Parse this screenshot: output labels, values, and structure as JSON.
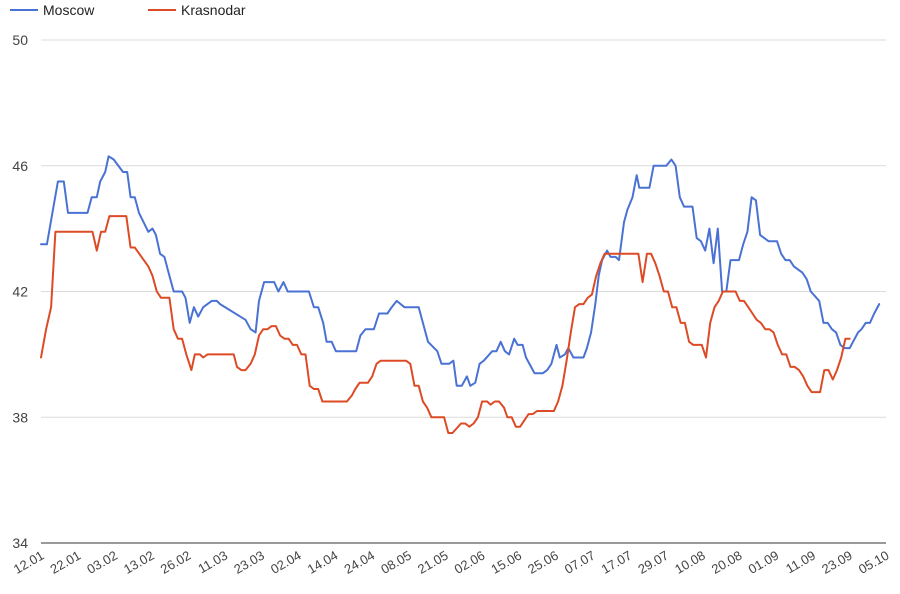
{
  "chart_data": {
    "type": "line",
    "legend_position": "top-left",
    "grid": true,
    "ylim": [
      34,
      50
    ],
    "yticks": [
      34,
      38,
      42,
      46,
      50
    ],
    "x_tick_labels": [
      "12.01",
      "22.01",
      "03.02",
      "13.02",
      "26.02",
      "11.03",
      "23.03",
      "02.04",
      "14.04",
      "24.04",
      "08.05",
      "21.05",
      "02.06",
      "15.06",
      "25.06",
      "07.07",
      "17.07",
      "29.07",
      "10.08",
      "20.08",
      "01.09",
      "11.09",
      "23.09",
      "05.10"
    ],
    "series": [
      {
        "name": "Moscow",
        "color": "#4a72d4",
        "points": [
          [
            0,
            43.5
          ],
          [
            0.7,
            43.5
          ],
          [
            2,
            45.5
          ],
          [
            2.7,
            45.5
          ],
          [
            3.2,
            44.5
          ],
          [
            5.5,
            44.5
          ],
          [
            6,
            45
          ],
          [
            6.6,
            45
          ],
          [
            7,
            45.5
          ],
          [
            7.6,
            45.8
          ],
          [
            8,
            46.3
          ],
          [
            8.6,
            46.2
          ],
          [
            9.7,
            45.8
          ],
          [
            10.2,
            45.8
          ],
          [
            10.6,
            45
          ],
          [
            11.1,
            45
          ],
          [
            11.6,
            44.5
          ],
          [
            12.7,
            43.9
          ],
          [
            13.2,
            44
          ],
          [
            13.6,
            43.8
          ],
          [
            14.1,
            43.2
          ],
          [
            14.6,
            43.1
          ],
          [
            15.2,
            42.5
          ],
          [
            15.7,
            42
          ],
          [
            16.7,
            42
          ],
          [
            17.1,
            41.8
          ],
          [
            17.6,
            41
          ],
          [
            18.1,
            41.5
          ],
          [
            18.6,
            41.2
          ],
          [
            19.2,
            41.5
          ],
          [
            20.2,
            41.7
          ],
          [
            20.8,
            41.7
          ],
          [
            21.2,
            41.6
          ],
          [
            24.2,
            41.1
          ],
          [
            24.8,
            40.8
          ],
          [
            25.4,
            40.7
          ],
          [
            25.8,
            41.7
          ],
          [
            26.4,
            42.3
          ],
          [
            27.6,
            42.3
          ],
          [
            28.1,
            42
          ],
          [
            28.7,
            42.3
          ],
          [
            29.2,
            42
          ],
          [
            31.7,
            42
          ],
          [
            32.3,
            41.5
          ],
          [
            32.8,
            41.5
          ],
          [
            33.4,
            41
          ],
          [
            33.8,
            40.4
          ],
          [
            34.4,
            40.4
          ],
          [
            34.9,
            40.1
          ],
          [
            37.3,
            40.1
          ],
          [
            37.8,
            40.6
          ],
          [
            38.4,
            40.8
          ],
          [
            39.4,
            40.8
          ],
          [
            40,
            41.3
          ],
          [
            41,
            41.3
          ],
          [
            41.5,
            41.5
          ],
          [
            42.1,
            41.7
          ],
          [
            43,
            41.5
          ],
          [
            44.7,
            41.5
          ],
          [
            45.3,
            40.9
          ],
          [
            45.8,
            40.4
          ],
          [
            46.9,
            40.1
          ],
          [
            47.4,
            39.7
          ],
          [
            48.3,
            39.7
          ],
          [
            48.8,
            39.8
          ],
          [
            49.2,
            39
          ],
          [
            49.8,
            39
          ],
          [
            50.4,
            39.3
          ],
          [
            50.8,
            39
          ],
          [
            51.4,
            39.1
          ],
          [
            51.9,
            39.7
          ],
          [
            52.4,
            39.8
          ],
          [
            53.4,
            40.1
          ],
          [
            53.9,
            40.1
          ],
          [
            54.4,
            40.4
          ],
          [
            54.9,
            40.1
          ],
          [
            55.4,
            40
          ],
          [
            56,
            40.5
          ],
          [
            56.4,
            40.3
          ],
          [
            57,
            40.3
          ],
          [
            57.4,
            39.9
          ],
          [
            58.4,
            39.4
          ],
          [
            59.4,
            39.4
          ],
          [
            59.9,
            39.5
          ],
          [
            60.4,
            39.7
          ],
          [
            61,
            40.3
          ],
          [
            61.4,
            39.9
          ],
          [
            62,
            40
          ],
          [
            62.4,
            40.2
          ],
          [
            63,
            39.9
          ],
          [
            64.2,
            39.9
          ],
          [
            64.6,
            40.2
          ],
          [
            65.1,
            40.7
          ],
          [
            65.6,
            41.6
          ],
          [
            66,
            42.5
          ],
          [
            66.4,
            43
          ],
          [
            67,
            43.3
          ],
          [
            67.4,
            43.1
          ],
          [
            68,
            43.1
          ],
          [
            68.4,
            43
          ],
          [
            69,
            44.2
          ],
          [
            69.4,
            44.6
          ],
          [
            70,
            45
          ],
          [
            70.5,
            45.7
          ],
          [
            70.8,
            45.3
          ],
          [
            72,
            45.3
          ],
          [
            72.5,
            46
          ],
          [
            74,
            46
          ],
          [
            74.6,
            46.2
          ],
          [
            75.1,
            46
          ],
          [
            75.6,
            45
          ],
          [
            76.1,
            44.7
          ],
          [
            77.1,
            44.7
          ],
          [
            77.6,
            43.7
          ],
          [
            78.1,
            43.6
          ],
          [
            78.6,
            43.3
          ],
          [
            79.1,
            44
          ],
          [
            79.6,
            42.9
          ],
          [
            80.1,
            44
          ],
          [
            80.6,
            42
          ],
          [
            81.1,
            42
          ],
          [
            81.6,
            43
          ],
          [
            82.6,
            43
          ],
          [
            83.1,
            43.5
          ],
          [
            83.6,
            43.9
          ],
          [
            84.1,
            45
          ],
          [
            84.6,
            44.9
          ],
          [
            85.1,
            43.8
          ],
          [
            85.6,
            43.7
          ],
          [
            86.1,
            43.6
          ],
          [
            87.1,
            43.6
          ],
          [
            87.6,
            43.2
          ],
          [
            88.1,
            43
          ],
          [
            88.6,
            43
          ],
          [
            89.1,
            42.8
          ],
          [
            90.1,
            42.6
          ],
          [
            90.6,
            42.4
          ],
          [
            91.1,
            42
          ],
          [
            92.1,
            41.7
          ],
          [
            92.6,
            41
          ],
          [
            93.1,
            41
          ],
          [
            93.6,
            40.8
          ],
          [
            94.1,
            40.7
          ],
          [
            94.6,
            40.3
          ],
          [
            95.1,
            40.2
          ],
          [
            95.7,
            40.2
          ],
          [
            96.1,
            40.4
          ],
          [
            96.7,
            40.7
          ],
          [
            97.1,
            40.8
          ],
          [
            97.6,
            41
          ],
          [
            98.1,
            41
          ],
          [
            98.6,
            41.3
          ],
          [
            99.2,
            41.6
          ]
        ]
      },
      {
        "name": "Krasnodar",
        "color": "#dd4b26",
        "points": [
          [
            0,
            39.9
          ],
          [
            0.6,
            40.8
          ],
          [
            1.2,
            41.5
          ],
          [
            1.7,
            43.9
          ],
          [
            5.6,
            43.9
          ],
          [
            6.1,
            43.9
          ],
          [
            6.6,
            43.3
          ],
          [
            7.1,
            43.9
          ],
          [
            7.6,
            43.9
          ],
          [
            8.1,
            44.4
          ],
          [
            10.1,
            44.4
          ],
          [
            10.6,
            43.4
          ],
          [
            11.1,
            43.4
          ],
          [
            12.7,
            42.8
          ],
          [
            13.2,
            42.5
          ],
          [
            13.7,
            42
          ],
          [
            14.2,
            41.8
          ],
          [
            15.2,
            41.8
          ],
          [
            15.7,
            40.8
          ],
          [
            16.2,
            40.5
          ],
          [
            16.7,
            40.5
          ],
          [
            17.2,
            40
          ],
          [
            17.8,
            39.5
          ],
          [
            18.2,
            40
          ],
          [
            18.8,
            40
          ],
          [
            19.2,
            39.9
          ],
          [
            19.7,
            40
          ],
          [
            22.4,
            40
          ],
          [
            22.8,
            40
          ],
          [
            23.2,
            39.6
          ],
          [
            23.7,
            39.5
          ],
          [
            24.2,
            39.5
          ],
          [
            24.8,
            39.7
          ],
          [
            25.3,
            40
          ],
          [
            25.8,
            40.6
          ],
          [
            26.3,
            40.8
          ],
          [
            26.8,
            40.8
          ],
          [
            27.3,
            40.9
          ],
          [
            27.8,
            40.9
          ],
          [
            28.3,
            40.6
          ],
          [
            28.8,
            40.5
          ],
          [
            29.3,
            40.5
          ],
          [
            29.8,
            40.3
          ],
          [
            30.3,
            40.3
          ],
          [
            30.8,
            40
          ],
          [
            31.3,
            40
          ],
          [
            31.8,
            39
          ],
          [
            32.3,
            38.9
          ],
          [
            32.8,
            38.9
          ],
          [
            33.3,
            38.5
          ],
          [
            36.2,
            38.5
          ],
          [
            36.8,
            38.7
          ],
          [
            37.2,
            38.9
          ],
          [
            37.7,
            39.1
          ],
          [
            38.7,
            39.1
          ],
          [
            39.2,
            39.3
          ],
          [
            39.7,
            39.7
          ],
          [
            40.2,
            39.8
          ],
          [
            43.2,
            39.8
          ],
          [
            43.7,
            39.7
          ],
          [
            44.2,
            39
          ],
          [
            44.7,
            39
          ],
          [
            45.2,
            38.5
          ],
          [
            45.7,
            38.3
          ],
          [
            46.2,
            38
          ],
          [
            47.7,
            38
          ],
          [
            48.2,
            37.5
          ],
          [
            48.7,
            37.5
          ],
          [
            49.7,
            37.8
          ],
          [
            50.2,
            37.8
          ],
          [
            50.7,
            37.7
          ],
          [
            51.2,
            37.8
          ],
          [
            51.7,
            38
          ],
          [
            52.2,
            38.5
          ],
          [
            52.8,
            38.5
          ],
          [
            53.2,
            38.4
          ],
          [
            53.7,
            38.5
          ],
          [
            54.2,
            38.5
          ],
          [
            54.8,
            38.3
          ],
          [
            55.2,
            38
          ],
          [
            55.7,
            38
          ],
          [
            56.2,
            37.7
          ],
          [
            56.7,
            37.7
          ],
          [
            57.2,
            37.9
          ],
          [
            57.7,
            38.1
          ],
          [
            58.2,
            38.1
          ],
          [
            58.7,
            38.2
          ],
          [
            60.7,
            38.2
          ],
          [
            61.2,
            38.5
          ],
          [
            61.7,
            39
          ],
          [
            62.2,
            39.8
          ],
          [
            62.7,
            40.7
          ],
          [
            63.2,
            41.5
          ],
          [
            63.7,
            41.6
          ],
          [
            64.2,
            41.6
          ],
          [
            64.7,
            41.8
          ],
          [
            65.2,
            41.9
          ],
          [
            65.7,
            42.5
          ],
          [
            66.2,
            42.9
          ],
          [
            66.7,
            43.2
          ],
          [
            70.7,
            43.2
          ],
          [
            71.2,
            42.3
          ],
          [
            71.7,
            43.2
          ],
          [
            72.2,
            43.2
          ],
          [
            72.7,
            42.9
          ],
          [
            73.2,
            42.5
          ],
          [
            73.7,
            42
          ],
          [
            74.2,
            42
          ],
          [
            74.7,
            41.5
          ],
          [
            75.2,
            41.5
          ],
          [
            75.7,
            41
          ],
          [
            76.2,
            41
          ],
          [
            76.7,
            40.4
          ],
          [
            77.2,
            40.3
          ],
          [
            78.2,
            40.3
          ],
          [
            78.7,
            39.9
          ],
          [
            79.2,
            41
          ],
          [
            79.7,
            41.5
          ],
          [
            80.2,
            41.7
          ],
          [
            80.7,
            42
          ],
          [
            82.2,
            42
          ],
          [
            82.7,
            41.7
          ],
          [
            83.2,
            41.7
          ],
          [
            83.7,
            41.5
          ],
          [
            84.2,
            41.3
          ],
          [
            84.7,
            41.1
          ],
          [
            85.2,
            41
          ],
          [
            85.7,
            40.8
          ],
          [
            86.2,
            40.8
          ],
          [
            86.7,
            40.7
          ],
          [
            87.2,
            40.3
          ],
          [
            87.7,
            40
          ],
          [
            88.2,
            40
          ],
          [
            88.7,
            39.6
          ],
          [
            89.2,
            39.6
          ],
          [
            89.7,
            39.5
          ],
          [
            90.2,
            39.3
          ],
          [
            90.7,
            39
          ],
          [
            91.2,
            38.8
          ],
          [
            92.2,
            38.8
          ],
          [
            92.7,
            39.5
          ],
          [
            93.2,
            39.5
          ],
          [
            93.7,
            39.2
          ],
          [
            94.2,
            39.5
          ],
          [
            94.7,
            39.9
          ],
          [
            95.2,
            40.5
          ],
          [
            95.7,
            40.5
          ]
        ]
      }
    ]
  }
}
